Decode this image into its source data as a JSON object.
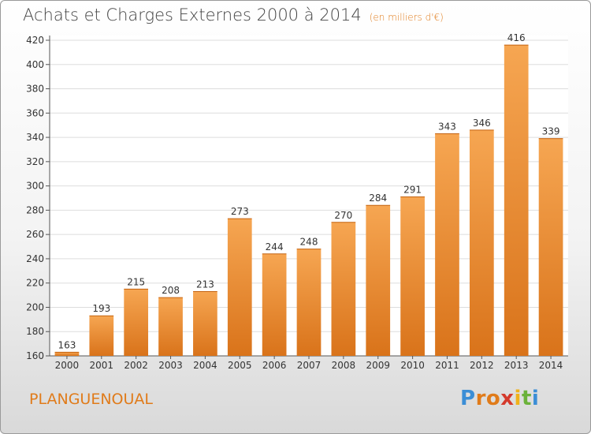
{
  "header": {
    "title": "Achats et Charges Externes 2000 à 2014",
    "subtitle": "(en milliers d'€)"
  },
  "footer": {
    "commune": "PLANGUENOUAL",
    "logo_letters": [
      "P",
      "r",
      "o",
      "x",
      "i",
      "t",
      "i"
    ],
    "logo_colors": [
      "#3b8ed6",
      "#e07b1a",
      "#e07b1a",
      "#d43a2c",
      "#f0b21a",
      "#6bb23a",
      "#3b8ed6"
    ]
  },
  "colors": {
    "bar_top": "#f6a652",
    "bar_bottom": "#d9731a",
    "grid": "#dddddd",
    "text_accent": "#e07b1a"
  },
  "chart_data": {
    "type": "bar",
    "title": "Achats et Charges Externes 2000 à 2014",
    "subtitle": "(en milliers d'€)",
    "xlabel": "",
    "ylabel": "",
    "categories": [
      "2000",
      "2001",
      "2002",
      "2003",
      "2004",
      "2005",
      "2006",
      "2007",
      "2008",
      "2009",
      "2010",
      "2011",
      "2012",
      "2013",
      "2014"
    ],
    "values": [
      163,
      193,
      215,
      208,
      213,
      273,
      244,
      248,
      270,
      284,
      291,
      343,
      346,
      416,
      339
    ],
    "ylim": [
      160,
      420
    ],
    "yticks": [
      160,
      180,
      200,
      220,
      240,
      260,
      280,
      300,
      320,
      340,
      360,
      380,
      400,
      420
    ],
    "grid": true,
    "data_labels": true
  }
}
